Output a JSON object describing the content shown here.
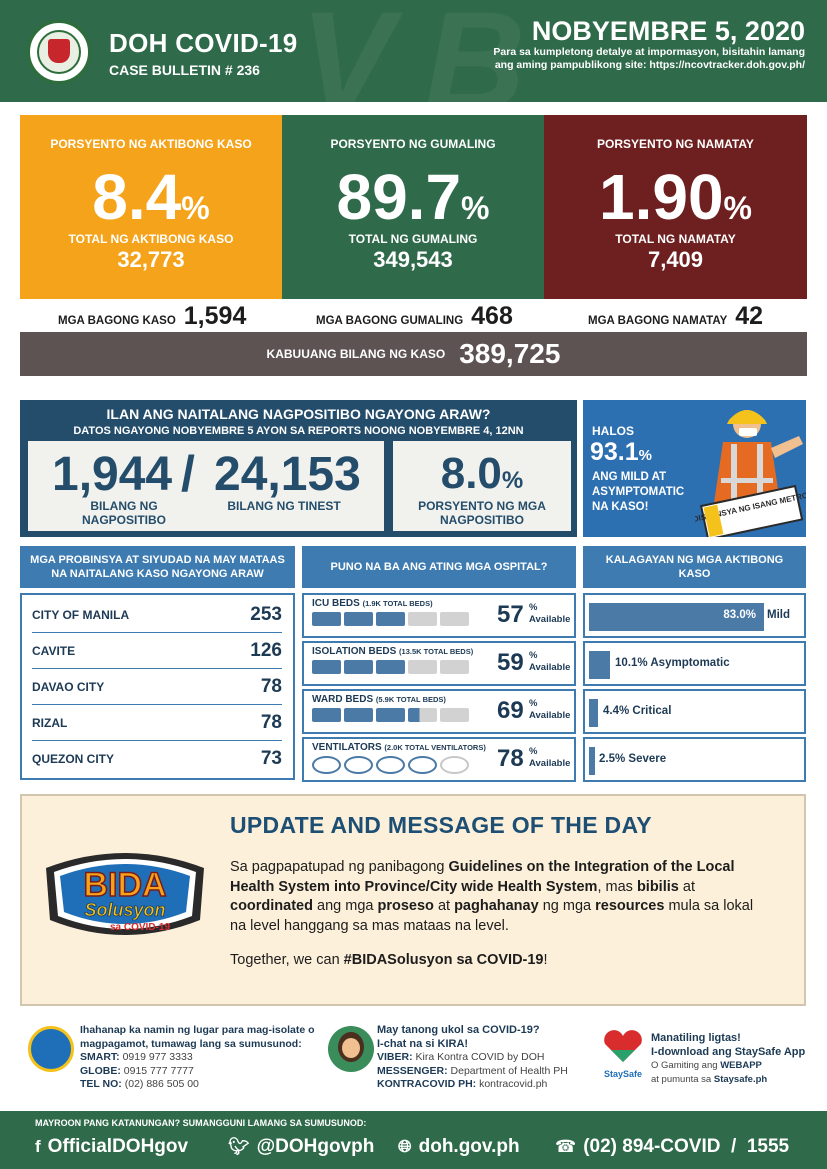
{
  "header": {
    "title": "DOH COVID-19",
    "bulletin": "CASE BULLETIN # 236",
    "date": "NOBYEMBRE 5, 2020",
    "note": "Para sa kumpletong detalye at impormasyon, bisitahin lamang ang aming pampublikong site: https://ncovtracker.doh.gov.ph/"
  },
  "stats": [
    {
      "label": "PORSYENTO NG AKTIBONG KASO",
      "value": "8.4",
      "unit": "%",
      "total_label": "TOTAL NG AKTIBONG KASO",
      "total": "32,773",
      "color": "#f5a31a"
    },
    {
      "label": "PORSYENTO NG GUMALING",
      "value": "89.7",
      "unit": "%",
      "total_label": "TOTAL NG GUMALING",
      "total": "349,543",
      "color": "#2f6a4a"
    },
    {
      "label": "PORSYENTO NG NAMATAY",
      "value": "1.90",
      "unit": "%",
      "total_label": "TOTAL NG NAMATAY",
      "total": "7,409",
      "color": "#6e1f1f"
    }
  ],
  "new_cases": [
    {
      "label": "MGA BAGONG KASO",
      "value": "1,594"
    },
    {
      "label": "MGA BAGONG GUMALING",
      "value": "468"
    },
    {
      "label": "MGA BAGONG NAMATAY",
      "value": "42"
    }
  ],
  "total": {
    "label": "KABUUANG BILANG NG KASO",
    "value": "389,725"
  },
  "positivity": {
    "question": "ILAN ANG NAITALANG NAGPOSITIBO NGAYONG ARAW?",
    "subtitle": "DATOS NGAYONG NOBYEMBRE 5 AYON SA REPORTS NOONG NOBYEMBRE 4, 12NN",
    "positive": "1,944",
    "positive_label": "BILANG NG NAGPOSITIBO",
    "tested": "24,153",
    "tested_label": "BILANG NG TINEST",
    "rate": "8.0",
    "rate_unit": "%",
    "rate_label": "PORSYENTO NG MGA NAGPOSITIBO"
  },
  "mild": {
    "line1": "HALOS",
    "value": "93.1",
    "unit": "%",
    "line2": "ANG MILD AT ASYMPTOMATIC NA KASO!",
    "sign": "DISTANSYA NG ISANG METRO"
  },
  "provinces": {
    "title": "MGA PROBINSYA AT SIYUDAD NA MAY MATAAS NA NAITALANG KASO NGAYONG ARAW",
    "items": [
      {
        "name": "CITY OF MANILA",
        "value": "253"
      },
      {
        "name": "CAVITE",
        "value": "126"
      },
      {
        "name": "DAVAO CITY",
        "value": "78"
      },
      {
        "name": "RIZAL",
        "value": "78"
      },
      {
        "name": "QUEZON CITY",
        "value": "73"
      }
    ]
  },
  "hospitals": {
    "title": "PUNO NA BA ANG ATING MGA OSPITAL?",
    "items": [
      {
        "label": "ICU BEDS",
        "sub": "(1.9K TOTAL BEDS)",
        "value": "57",
        "unit": "%",
        "avail": "Available",
        "occupied_of_5": 3
      },
      {
        "label": "ISOLATION BEDS",
        "sub": "(13.5K TOTAL BEDS)",
        "value": "59",
        "unit": "%",
        "avail": "Available",
        "occupied_of_5": 3
      },
      {
        "label": "WARD BEDS",
        "sub": "(5.9K TOTAL BEDS)",
        "value": "69",
        "unit": "%",
        "avail": "Available",
        "occupied_of_5": 3.4
      },
      {
        "label": "VENTILATORS",
        "sub": "(2.0K TOTAL VENTILATORS)",
        "value": "78",
        "unit": "%",
        "avail": "Available",
        "occupied_of_5": 4
      }
    ]
  },
  "active": {
    "title": "KALAGAYAN NG MGA AKTIBONG KASO",
    "items": [
      {
        "label": "83.0%",
        "tail": "Mild",
        "percent": 83.0
      },
      {
        "label": "10.1% Asymptomatic",
        "percent": 10.1
      },
      {
        "label": "4.4% Critical",
        "percent": 4.4
      },
      {
        "label": "2.5% Severe",
        "percent": 2.5
      }
    ]
  },
  "update": {
    "title": "UPDATE AND MESSAGE OF THE DAY",
    "p1": "Sa pagpapatupad ng panibagong",
    "p1b": "Guidelines on the Integration of the Local Health System into Province/City wide Health System",
    "p1c": ", mas",
    "p1d": "bibilis",
    "p1e": "at",
    "p1f": "coordinated",
    "p1g": "ang mga",
    "p1h": "proseso",
    "p1i": "at",
    "p1j": "paghahanay",
    "p1k": "ng mga",
    "p1l": "resources",
    "p1m": "mula sa lokal na level hanggang sa mas mataas na level.",
    "p2a": "Together, we can",
    "p2b": "#BIDASolusyon sa COVID-19",
    "p2c": "!",
    "logo_line1": "BIDA",
    "logo_line2": "Solusyon",
    "logo_line3": "sa COVID-19"
  },
  "contacts": {
    "isolate": {
      "text": "Ihahanap ka namin ng lugar para mag-isolate o magpagamot, tumawag lang sa sumusunod:",
      "smart_label": "SMART:",
      "smart": "0919 977 3333",
      "globe_label": "GLOBE:",
      "globe": "0915 777 7777",
      "tel_label": "TEL NO:",
      "tel": "(02) 886 505 00"
    },
    "kira": {
      "q": "May tanong ukol sa COVID-19?",
      "q2": "I-chat na si KIRA!",
      "viber_label": "VIBER:",
      "viber": "Kira Kontra COVID by DOH",
      "msg_label": "MESSENGER:",
      "msg": "Department of Health PH",
      "kk_label": "KONTRACOVID PH:",
      "kk": "kontracovid.ph"
    },
    "staysafe": {
      "l1": "Manatiling ligtas!",
      "l2": "I-download ang StaySafe App",
      "l3a": "O Gamiting ang",
      "l3b": "WEBAPP",
      "l4a": "at pumunta sa",
      "l4b": "Staysafe.ph",
      "logo": "StaySafe"
    }
  },
  "footer": {
    "question": "MAYROON PANG KATANUNGAN? SUMANGGUNI LAMANG SA SUMUSUNOD:",
    "facebook": "OfficialDOHgov",
    "twitter": "@DOHgovph",
    "web": "doh.gov.ph",
    "phone": "(02) 894-COVID  /  1555"
  },
  "icons": {
    "facebook": "facebook-icon",
    "twitter": "twitter-icon",
    "web": "globe-icon",
    "phone": "phone-icon"
  }
}
